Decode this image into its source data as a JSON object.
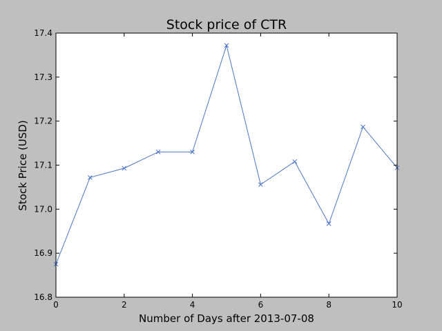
{
  "chart_data": {
    "type": "line",
    "title": "Stock price of CTR",
    "xlabel": "Number of Days after 2013-07-08",
    "ylabel": "Stock Price (USD)",
    "xlim": [
      0,
      10
    ],
    "ylim": [
      16.8,
      17.4
    ],
    "x_ticks": [
      0,
      2,
      4,
      6,
      8,
      10
    ],
    "y_ticks": [
      16.8,
      16.9,
      17.0,
      17.1,
      17.2,
      17.3,
      17.4
    ],
    "x_tick_labels": [
      "0",
      "2",
      "4",
      "6",
      "8",
      "10"
    ],
    "y_tick_labels": [
      "16.8",
      "16.9",
      "17.0",
      "17.1",
      "17.2",
      "17.3",
      "17.4"
    ],
    "grid": false,
    "legend": false,
    "series": [
      {
        "color": "#4a74cc",
        "marker": "x",
        "x": [
          0,
          1,
          2,
          3,
          4,
          5,
          6,
          7,
          8,
          9,
          10
        ],
        "y": [
          16.875,
          17.072,
          17.093,
          17.13,
          17.13,
          17.372,
          17.056,
          17.108,
          16.967,
          17.187,
          17.094
        ]
      }
    ]
  }
}
